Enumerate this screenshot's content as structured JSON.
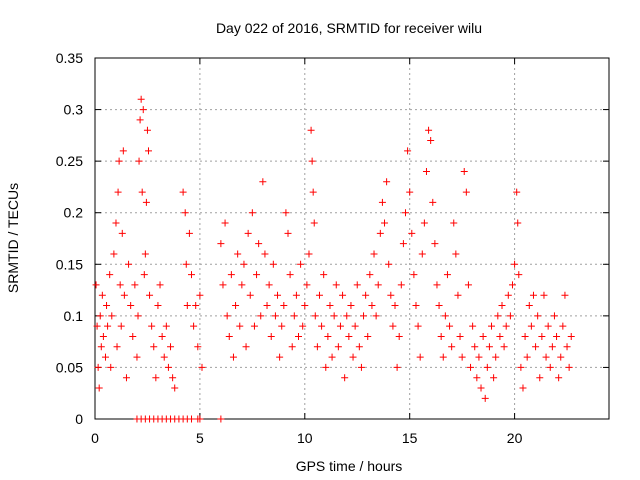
{
  "chart_data": {
    "type": "scatter",
    "title": "Day 022 of 2016, SRMTID for receiver wilu",
    "xlabel": "GPS time / hours",
    "ylabel": "SRMTID / TECUs",
    "xlim": [
      0,
      24.5
    ],
    "ylim": [
      0,
      0.35
    ],
    "xticks": [
      0,
      5,
      10,
      15,
      20
    ],
    "xtick_labels": [
      "0",
      "5",
      "10",
      "15",
      "20"
    ],
    "yticks": [
      0,
      0.05,
      0.1,
      0.15,
      0.2,
      0.25,
      0.3,
      0.35
    ],
    "ytick_labels": [
      "0",
      "0.05",
      "0.1",
      "0.15",
      "0.2",
      "0.25",
      "0.3",
      "0.35"
    ],
    "grid": true,
    "marker": "+",
    "color": "#ff0000",
    "series": [
      {
        "name": "SRMTID",
        "points": [
          [
            0.05,
            0.13
          ],
          [
            0.1,
            0.09
          ],
          [
            0.15,
            0.05
          ],
          [
            0.2,
            0.03
          ],
          [
            0.25,
            0.1
          ],
          [
            0.3,
            0.07
          ],
          [
            0.35,
            0.12
          ],
          [
            0.4,
            0.08
          ],
          [
            0.5,
            0.06
          ],
          [
            0.55,
            0.11
          ],
          [
            0.6,
            0.09
          ],
          [
            0.7,
            0.14
          ],
          [
            0.75,
            0.05
          ],
          [
            0.8,
            0.1
          ],
          [
            0.9,
            0.16
          ],
          [
            1.0,
            0.19
          ],
          [
            1.05,
            0.07
          ],
          [
            1.1,
            0.22
          ],
          [
            1.15,
            0.25
          ],
          [
            1.2,
            0.13
          ],
          [
            1.25,
            0.09
          ],
          [
            1.3,
            0.18
          ],
          [
            1.35,
            0.26
          ],
          [
            1.4,
            0.12
          ],
          [
            1.5,
            0.04
          ],
          [
            1.6,
            0.15
          ],
          [
            1.7,
            0.11
          ],
          [
            1.8,
            0.08
          ],
          [
            1.9,
            0.13
          ],
          [
            2.0,
            0.06
          ],
          [
            2.05,
            0.1
          ],
          [
            2.1,
            0.25
          ],
          [
            2.15,
            0.29
          ],
          [
            2.2,
            0.31
          ],
          [
            2.25,
            0.22
          ],
          [
            2.3,
            0.3
          ],
          [
            2.35,
            0.14
          ],
          [
            2.4,
            0.16
          ],
          [
            2.45,
            0.21
          ],
          [
            2.5,
            0.28
          ],
          [
            2.55,
            0.26
          ],
          [
            2.6,
            0.12
          ],
          [
            2.7,
            0.09
          ],
          [
            2.8,
            0.07
          ],
          [
            2.9,
            0.04
          ],
          [
            3.0,
            0.11
          ],
          [
            3.1,
            0.13
          ],
          [
            3.2,
            0.08
          ],
          [
            3.3,
            0.06
          ],
          [
            3.4,
            0.09
          ],
          [
            3.5,
            0.05
          ],
          [
            3.6,
            0.07
          ],
          [
            3.7,
            0.04
          ],
          [
            3.8,
            0.03
          ],
          [
            4.2,
            0.22
          ],
          [
            4.3,
            0.2
          ],
          [
            4.35,
            0.15
          ],
          [
            4.4,
            0.11
          ],
          [
            4.5,
            0.18
          ],
          [
            4.6,
            0.14
          ],
          [
            4.7,
            0.09
          ],
          [
            4.8,
            0.11
          ],
          [
            4.9,
            0.07
          ],
          [
            5.0,
            0.12
          ],
          [
            5.1,
            0.05
          ],
          [
            6.0,
            0.17
          ],
          [
            6.1,
            0.13
          ],
          [
            6.2,
            0.19
          ],
          [
            6.3,
            0.1
          ],
          [
            6.4,
            0.08
          ],
          [
            6.5,
            0.14
          ],
          [
            6.6,
            0.06
          ],
          [
            6.7,
            0.11
          ],
          [
            6.8,
            0.16
          ],
          [
            6.9,
            0.09
          ],
          [
            7.0,
            0.13
          ],
          [
            7.1,
            0.15
          ],
          [
            7.2,
            0.07
          ],
          [
            7.3,
            0.18
          ],
          [
            7.4,
            0.12
          ],
          [
            7.5,
            0.2
          ],
          [
            7.6,
            0.09
          ],
          [
            7.7,
            0.14
          ],
          [
            7.8,
            0.17
          ],
          [
            7.9,
            0.1
          ],
          [
            8.0,
            0.23
          ],
          [
            8.1,
            0.16
          ],
          [
            8.2,
            0.11
          ],
          [
            8.3,
            0.13
          ],
          [
            8.4,
            0.08
          ],
          [
            8.5,
            0.15
          ],
          [
            8.6,
            0.1
          ],
          [
            8.7,
            0.12
          ],
          [
            8.8,
            0.06
          ],
          [
            8.9,
            0.09
          ],
          [
            9.0,
            0.11
          ],
          [
            9.1,
            0.2
          ],
          [
            9.2,
            0.18
          ],
          [
            9.3,
            0.14
          ],
          [
            9.4,
            0.07
          ],
          [
            9.5,
            0.1
          ],
          [
            9.6,
            0.12
          ],
          [
            9.7,
            0.08
          ],
          [
            9.8,
            0.15
          ],
          [
            9.9,
            0.09
          ],
          [
            10.0,
            0.11
          ],
          [
            10.1,
            0.13
          ],
          [
            10.2,
            0.16
          ],
          [
            10.3,
            0.28
          ],
          [
            10.35,
            0.25
          ],
          [
            10.4,
            0.22
          ],
          [
            10.45,
            0.19
          ],
          [
            10.5,
            0.1
          ],
          [
            10.6,
            0.07
          ],
          [
            10.7,
            0.12
          ],
          [
            10.8,
            0.09
          ],
          [
            10.9,
            0.14
          ],
          [
            11.0,
            0.05
          ],
          [
            11.1,
            0.08
          ],
          [
            11.2,
            0.11
          ],
          [
            11.3,
            0.06
          ],
          [
            11.4,
            0.1
          ],
          [
            11.5,
            0.13
          ],
          [
            11.6,
            0.07
          ],
          [
            11.7,
            0.09
          ],
          [
            11.8,
            0.12
          ],
          [
            11.9,
            0.04
          ],
          [
            12.0,
            0.1
          ],
          [
            12.1,
            0.08
          ],
          [
            12.2,
            0.11
          ],
          [
            12.3,
            0.06
          ],
          [
            12.4,
            0.09
          ],
          [
            12.5,
            0.13
          ],
          [
            12.6,
            0.07
          ],
          [
            12.7,
            0.05
          ],
          [
            12.8,
            0.1
          ],
          [
            12.9,
            0.12
          ],
          [
            13.0,
            0.08
          ],
          [
            13.1,
            0.14
          ],
          [
            13.2,
            0.11
          ],
          [
            13.3,
            0.16
          ],
          [
            13.4,
            0.1
          ],
          [
            13.5,
            0.13
          ],
          [
            13.6,
            0.18
          ],
          [
            13.7,
            0.21
          ],
          [
            13.8,
            0.19
          ],
          [
            13.9,
            0.23
          ],
          [
            14.0,
            0.15
          ],
          [
            14.1,
            0.12
          ],
          [
            14.2,
            0.09
          ],
          [
            14.3,
            0.11
          ],
          [
            14.4,
            0.05
          ],
          [
            14.5,
            0.08
          ],
          [
            14.6,
            0.13
          ],
          [
            14.7,
            0.17
          ],
          [
            14.8,
            0.2
          ],
          [
            14.9,
            0.26
          ],
          [
            15.0,
            0.22
          ],
          [
            15.1,
            0.18
          ],
          [
            15.2,
            0.14
          ],
          [
            15.3,
            0.11
          ],
          [
            15.4,
            0.09
          ],
          [
            15.5,
            0.06
          ],
          [
            15.6,
            0.16
          ],
          [
            15.7,
            0.19
          ],
          [
            15.8,
            0.24
          ],
          [
            15.9,
            0.28
          ],
          [
            16.0,
            0.27
          ],
          [
            16.1,
            0.21
          ],
          [
            16.2,
            0.17
          ],
          [
            16.3,
            0.13
          ],
          [
            16.4,
            0.11
          ],
          [
            16.5,
            0.08
          ],
          [
            16.6,
            0.06
          ],
          [
            16.7,
            0.1
          ],
          [
            16.8,
            0.14
          ],
          [
            16.9,
            0.09
          ],
          [
            17.0,
            0.07
          ],
          [
            17.1,
            0.19
          ],
          [
            17.2,
            0.16
          ],
          [
            17.3,
            0.12
          ],
          [
            17.4,
            0.08
          ],
          [
            17.5,
            0.06
          ],
          [
            17.6,
            0.24
          ],
          [
            17.7,
            0.22
          ],
          [
            17.8,
            0.13
          ],
          [
            17.9,
            0.05
          ],
          [
            18.0,
            0.09
          ],
          [
            18.1,
            0.07
          ],
          [
            18.2,
            0.04
          ],
          [
            18.3,
            0.06
          ],
          [
            18.4,
            0.03
          ],
          [
            18.5,
            0.08
          ],
          [
            18.6,
            0.02
          ],
          [
            18.7,
            0.05
          ],
          [
            18.8,
            0.07
          ],
          [
            18.9,
            0.09
          ],
          [
            19.0,
            0.04
          ],
          [
            19.1,
            0.06
          ],
          [
            19.2,
            0.1
          ],
          [
            19.3,
            0.08
          ],
          [
            19.4,
            0.11
          ],
          [
            19.5,
            0.07
          ],
          [
            19.6,
            0.09
          ],
          [
            19.7,
            0.12
          ],
          [
            19.8,
            0.1
          ],
          [
            19.9,
            0.13
          ],
          [
            20.0,
            0.15
          ],
          [
            20.1,
            0.22
          ],
          [
            20.15,
            0.19
          ],
          [
            20.2,
            0.14
          ],
          [
            20.3,
            0.05
          ],
          [
            20.4,
            0.03
          ],
          [
            20.5,
            0.08
          ],
          [
            20.6,
            0.06
          ],
          [
            20.7,
            0.11
          ],
          [
            20.8,
            0.09
          ],
          [
            20.9,
            0.12
          ],
          [
            21.0,
            0.07
          ],
          [
            21.1,
            0.1
          ],
          [
            21.2,
            0.04
          ],
          [
            21.3,
            0.08
          ],
          [
            21.4,
            0.12
          ],
          [
            21.5,
            0.06
          ],
          [
            21.6,
            0.09
          ],
          [
            21.7,
            0.05
          ],
          [
            21.8,
            0.07
          ],
          [
            21.9,
            0.1
          ],
          [
            22.0,
            0.08
          ],
          [
            22.1,
            0.04
          ],
          [
            22.2,
            0.06
          ],
          [
            22.3,
            0.09
          ],
          [
            22.4,
            0.12
          ],
          [
            22.5,
            0.07
          ],
          [
            22.6,
            0.05
          ],
          [
            22.7,
            0.08
          ],
          [
            2.0,
            0.0
          ],
          [
            2.2,
            0.0
          ],
          [
            2.4,
            0.0
          ],
          [
            2.6,
            0.0
          ],
          [
            2.8,
            0.0
          ],
          [
            3.0,
            0.0
          ],
          [
            3.2,
            0.0
          ],
          [
            3.4,
            0.0
          ],
          [
            3.6,
            0.0
          ],
          [
            3.8,
            0.0
          ],
          [
            4.0,
            0.0
          ],
          [
            4.2,
            0.0
          ],
          [
            4.4,
            0.0
          ],
          [
            4.6,
            0.0
          ],
          [
            4.9,
            0.0
          ],
          [
            5.0,
            0.0
          ],
          [
            6.0,
            0.0
          ]
        ]
      }
    ]
  }
}
